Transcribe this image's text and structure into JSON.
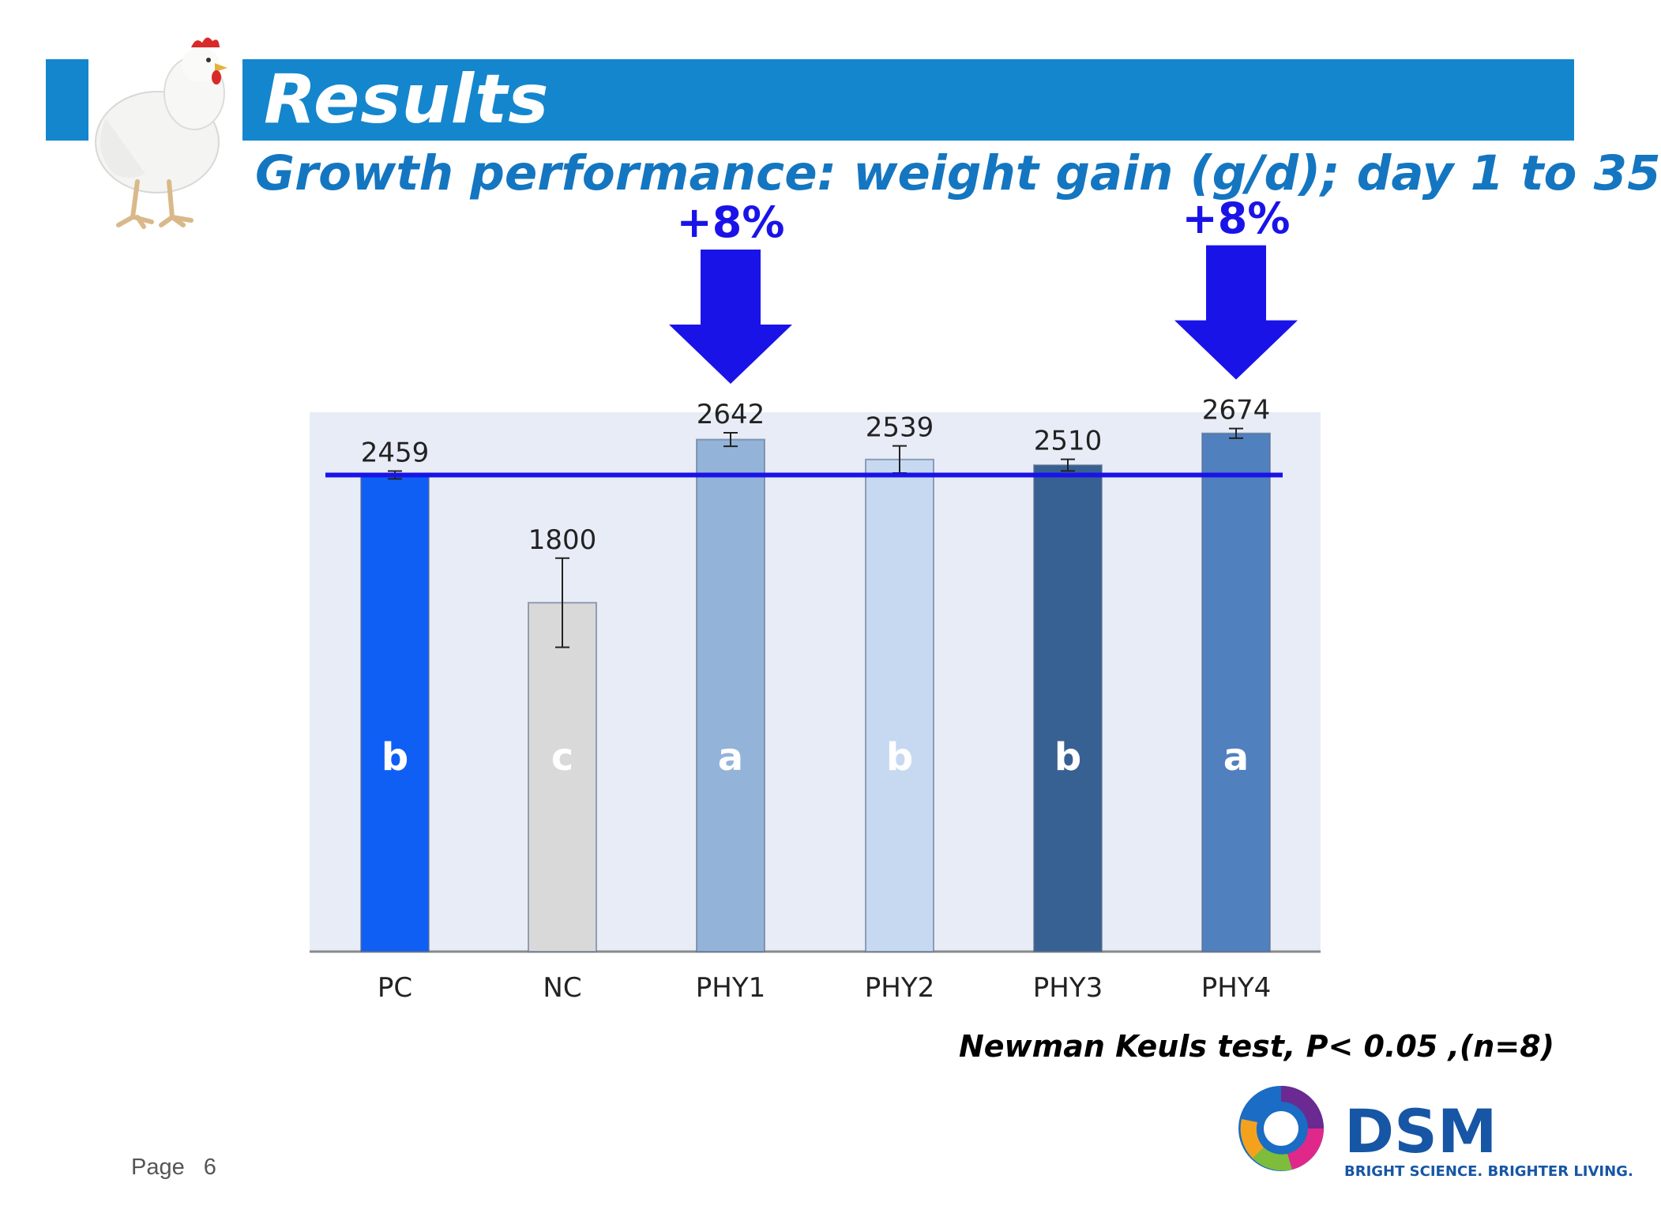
{
  "slide": {
    "title": "Results",
    "subtitle": "Growth performance: weight gain (g/d); day 1 to 35",
    "footnote": "Newman Keuls test, P< 0.05 ,(n=8)",
    "page_label": "Page",
    "page_number": "6",
    "logo": {
      "word": "DSM",
      "tagline": "BRIGHT SCIENCE. BRIGHTER LIVING."
    },
    "colors": {
      "title_bar": "#1486cd",
      "subtitle": "#1476c0",
      "arrow": "#1a13e8"
    }
  },
  "chart_data": {
    "type": "bar",
    "title": "",
    "xlabel": "",
    "ylabel": "",
    "categories": [
      "PC",
      "NC",
      "PHY1",
      "PHY2",
      "PHY3",
      "PHY4"
    ],
    "values": [
      2459,
      1800,
      2642,
      2539,
      2510,
      2674
    ],
    "error_bars": [
      20,
      230,
      35,
      70,
      30,
      25
    ],
    "significance_letters": [
      "b",
      "c",
      "a",
      "b",
      "b",
      "a"
    ],
    "bar_colors": [
      "#0f5ff5",
      "#d9d9da",
      "#94b3d9",
      "#c7d9f1",
      "#386193",
      "#5180be"
    ],
    "reference_line": {
      "value": 2459,
      "color": "#1a13e8"
    },
    "highlights": [
      {
        "category": "PHY1",
        "label": "+8%"
      },
      {
        "category": "PHY4",
        "label": "+8%"
      }
    ],
    "ylim": [
      0,
      2780
    ],
    "grid": false,
    "legend": "none",
    "plot_background": "#e8ecf7"
  }
}
